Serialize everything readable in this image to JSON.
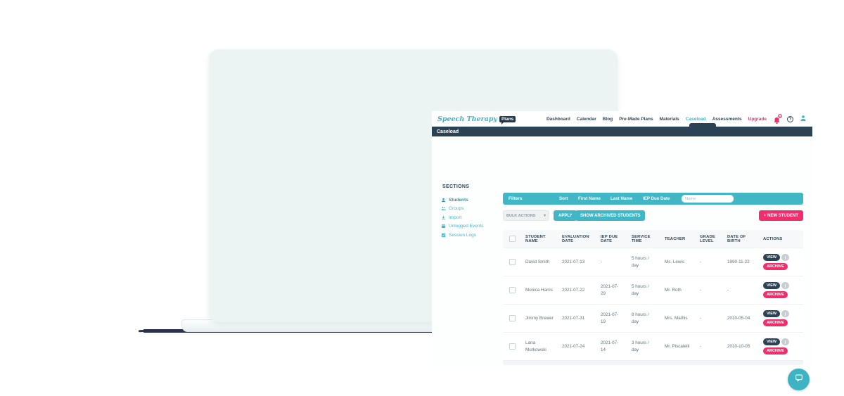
{
  "brand": {
    "name_script": "Speech Therapy",
    "name_badge": "Plans"
  },
  "nav": {
    "items": [
      "Dashboard",
      "Calendar",
      "Blog",
      "Pre-Made Plans",
      "Materials",
      "Caseload",
      "Assessments"
    ],
    "active_item": "Caseload",
    "upgrade_label": "Upgrade",
    "notification_badge": "0"
  },
  "title_bar": {
    "title": "Caseload"
  },
  "sidebar": {
    "heading": "SECTIONS",
    "items": [
      {
        "label": "Students",
        "icon": "student-icon",
        "active": true
      },
      {
        "label": "Groups",
        "icon": "groups-icon",
        "active": false
      },
      {
        "label": "Import",
        "icon": "import-icon",
        "active": false
      },
      {
        "label": "Unlogged Events",
        "icon": "unlogged-events-icon",
        "active": false
      },
      {
        "label": "Session Logs",
        "icon": "session-logs-icon",
        "active": false
      }
    ]
  },
  "filters": {
    "title": "Filters",
    "sort_label": "Sort",
    "options": [
      "First Name",
      "Last Name",
      "IEP Due Date"
    ],
    "search_placeholder": "Name"
  },
  "toolbar": {
    "bulk_actions_label": "BULK ACTIONS",
    "apply_label": "APPLY",
    "show_archived_label": "SHOW ARCHIVED STUDENTS",
    "new_student_label": "+ NEW STUDENT"
  },
  "table": {
    "columns": [
      "STUDENT NAME",
      "EVALUATION DATE",
      "IEP DUE DATE",
      "SERVICE TIME",
      "TEACHER",
      "GRADE LEVEL",
      "DATE OF BIRTH",
      "ACTIONS"
    ],
    "action_labels": {
      "view": "VIEW",
      "archive": "ARCHIVE"
    },
    "rows": [
      {
        "student_name": "David Smith",
        "evaluation_date": "2021-07-13",
        "iep_due_date": "-",
        "service_time": "5 hours / day",
        "teacher": "Ms. Lewis",
        "grade_level": "-",
        "date_of_birth": "1990-11-22"
      },
      {
        "student_name": "Monica Harris",
        "evaluation_date": "2021-07-22",
        "iep_due_date": "2021-07-29",
        "service_time": "5 hours / day",
        "teacher": "Mr. Roth",
        "grade_level": "-",
        "date_of_birth": "-"
      },
      {
        "student_name": "Jimmy Brewer",
        "evaluation_date": "2021-07-31",
        "iep_due_date": "2021-07-19",
        "service_time": "8 hours / day",
        "teacher": "Mrs. Mathis",
        "grade_level": "-",
        "date_of_birth": "2010-05-04"
      },
      {
        "student_name": "Lana Murkowski",
        "evaluation_date": "2021-07-24",
        "iep_due_date": "2021-07-14",
        "service_time": "3 hours / day",
        "teacher": "Mr. Piscatelli",
        "grade_level": "-",
        "date_of_birth": "2010-10-05"
      }
    ]
  },
  "colors": {
    "teal": "#41b7c5",
    "pink": "#ef2f6d",
    "navy": "#2b4255"
  }
}
